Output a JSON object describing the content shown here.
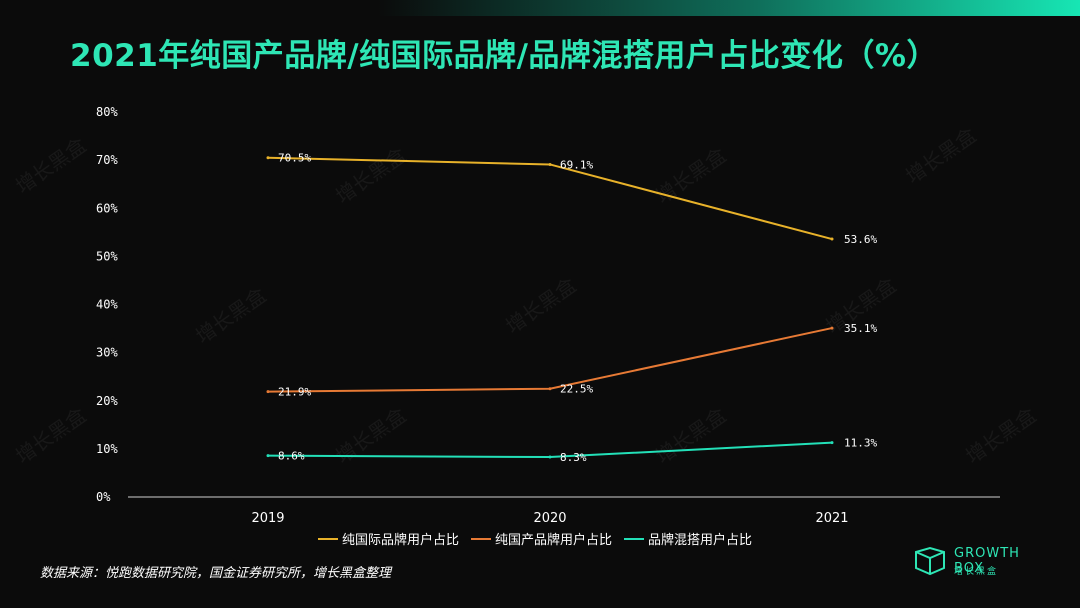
{
  "title": "2021年纯国产品牌/纯国际品牌/品牌混搭用户占比变化（%）",
  "source": "数据来源：悦跑数据研究院，国金证券研究所，增长黑盒整理",
  "logo": {
    "name": "GROWTH BOX",
    "sub": "增长黑盒"
  },
  "watermark_text": "增长黑盒",
  "colors": {
    "accent": "#2ee6b5",
    "international": "#e8b22a",
    "domestic": "#e77a35",
    "mixed": "#23e0b8"
  },
  "chart_data": {
    "type": "line",
    "title": "2021年纯国产品牌/纯国际品牌/品牌混搭用户占比变化（%）",
    "x": [
      "2019",
      "2020",
      "2021"
    ],
    "ylim": [
      0,
      80
    ],
    "yticks": [
      "0%",
      "10%",
      "20%",
      "30%",
      "40%",
      "50%",
      "60%",
      "70%",
      "80%"
    ],
    "grid": false,
    "legend": "bottom-center",
    "series": [
      {
        "name": "纯国际品牌用户占比",
        "values": [
          70.5,
          69.1,
          53.6
        ],
        "labels": [
          "70.5%",
          "69.1%",
          "53.6%"
        ],
        "color": "#e8b22a"
      },
      {
        "name": "纯国产品牌用户占比",
        "values": [
          21.9,
          22.5,
          35.1
        ],
        "labels": [
          "21.9%",
          "22.5%",
          "35.1%"
        ],
        "color": "#e77a35"
      },
      {
        "name": "品牌混搭用户占比",
        "values": [
          8.6,
          8.3,
          11.3
        ],
        "labels": [
          "8.6%",
          "8.3%",
          "11.3%"
        ],
        "color": "#23e0b8"
      }
    ]
  }
}
